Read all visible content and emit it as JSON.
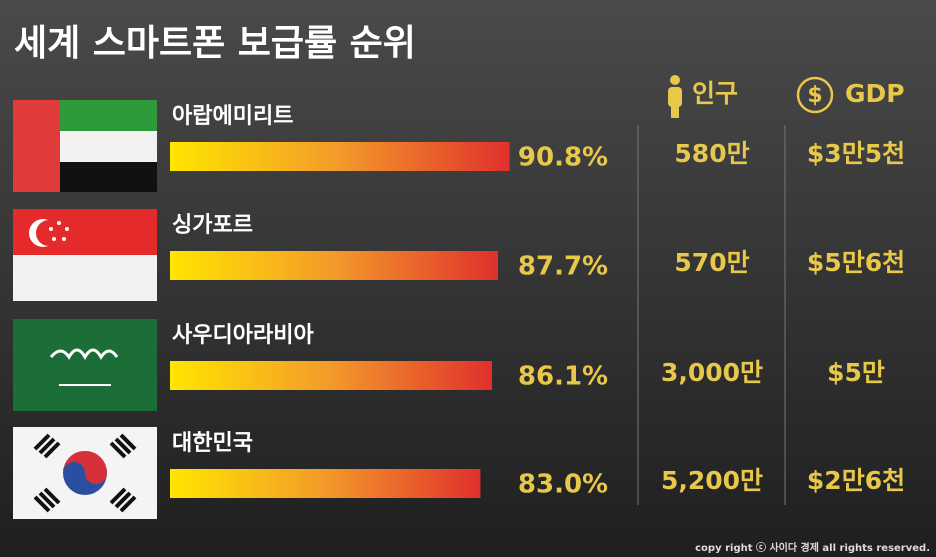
{
  "chart_data": {
    "type": "bar",
    "title": "세계 스마트폰 보급률 순위",
    "categories": [
      "아랍에미리트",
      "싱가포르",
      "사우디아라비아",
      "대한민국"
    ],
    "values": [
      90.8,
      87.7,
      86.1,
      83.0
    ],
    "value_labels": [
      "90.8%",
      "87.7%",
      "86.1%",
      "83.0%"
    ],
    "columns": [
      {
        "header": "인구",
        "values": [
          "580만",
          "570만",
          "3,000만",
          "5,200만"
        ]
      },
      {
        "header": "GDP",
        "values": [
          "$3만5천",
          "$5만6천",
          "$5만",
          "$2만6천"
        ]
      }
    ],
    "footer": "copy right ⓒ 사이다 경제 all rights reserved."
  }
}
